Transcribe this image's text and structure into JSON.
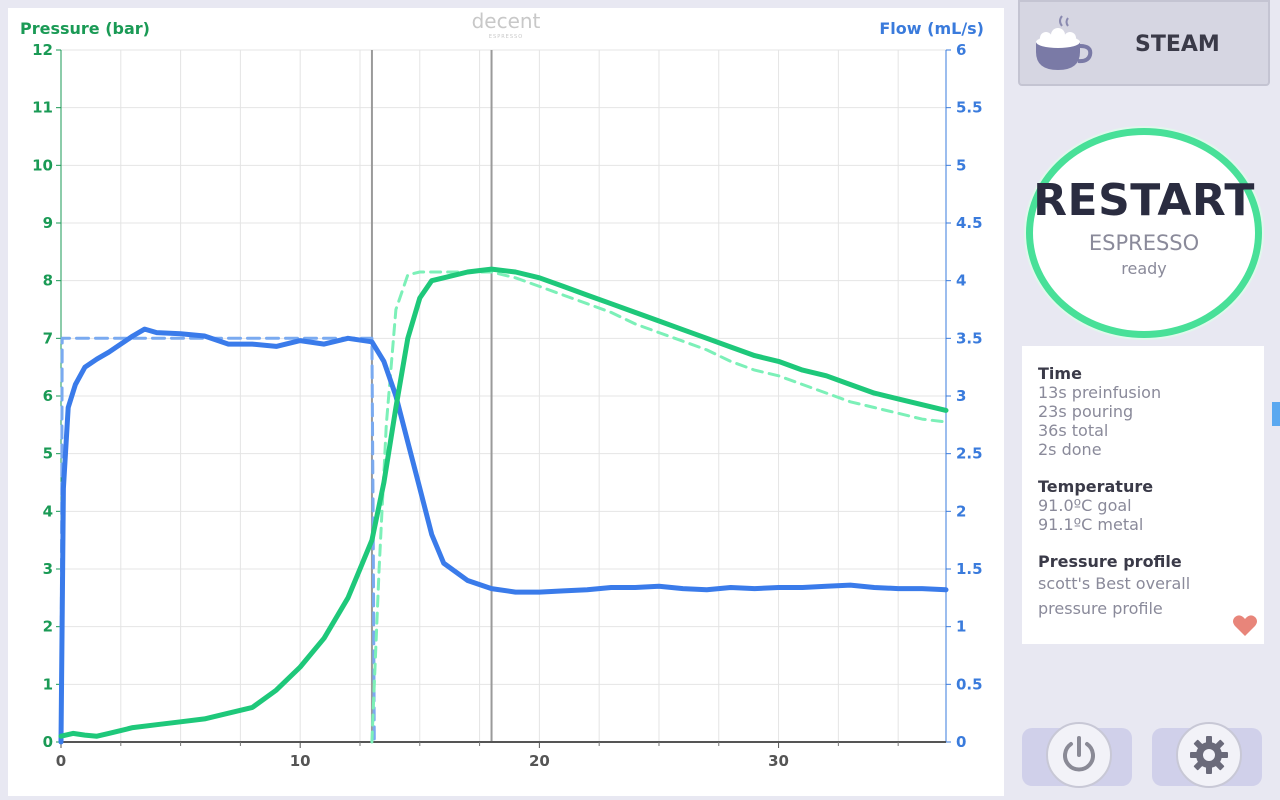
{
  "chart": {
    "brand_logo": "decent",
    "brand_sub": "ESPRESSO",
    "left_axis_title": "Pressure (bar)",
    "right_axis_title": "Flow (mL/s)",
    "colors": {
      "pressure": "#1ec87a",
      "pressure_goal": "#7cf0b8",
      "flow": "#3a7bea",
      "flow_goal": "#7aaaf0",
      "grid": "#e4e4e4",
      "marker": "#9a9a9a"
    }
  },
  "chart_data": {
    "type": "line",
    "xlabel": "",
    "ylabel": "Pressure (bar)",
    "y2label": "Flow (mL/s)",
    "xlim": [
      0,
      37
    ],
    "ylim": [
      0,
      12
    ],
    "y2lim": [
      0,
      6
    ],
    "x_ticks": [
      "0",
      "10",
      "20",
      "30"
    ],
    "x_tick_values": [
      0,
      10,
      20,
      30
    ],
    "y_ticks": [
      "0",
      "1",
      "2",
      "3",
      "4",
      "5",
      "6",
      "7",
      "8",
      "9",
      "10",
      "11",
      "12"
    ],
    "y2_ticks": [
      "0",
      "0.5",
      "1",
      "1.5",
      "2",
      "2.5",
      "3",
      "3.5",
      "4",
      "4.5",
      "5",
      "5.5",
      "6"
    ],
    "grid": true,
    "phase_markers": [
      13,
      18
    ],
    "series": [
      {
        "role": "pressure",
        "axis": "left",
        "style": "solid",
        "x": [
          0,
          0.5,
          1,
          1.5,
          2,
          3,
          4,
          5,
          6,
          7,
          8,
          9,
          10,
          11,
          12,
          12.5,
          13,
          13.5,
          14,
          14.5,
          15,
          15.5,
          16,
          17,
          18,
          19,
          20,
          21,
          22,
          23,
          24,
          25,
          26,
          27,
          28,
          29,
          30,
          31,
          32,
          33,
          34,
          35,
          36,
          37
        ],
        "y": [
          0.1,
          0.15,
          0.12,
          0.1,
          0.15,
          0.25,
          0.3,
          0.35,
          0.4,
          0.5,
          0.6,
          0.9,
          1.3,
          1.8,
          2.5,
          3.0,
          3.5,
          4.5,
          5.8,
          7.0,
          7.7,
          8.0,
          8.05,
          8.15,
          8.2,
          8.15,
          8.05,
          7.9,
          7.75,
          7.6,
          7.45,
          7.3,
          7.15,
          7.0,
          6.85,
          6.7,
          6.6,
          6.45,
          6.35,
          6.2,
          6.05,
          5.95,
          5.85,
          5.75
        ]
      },
      {
        "role": "pressure goal",
        "axis": "left",
        "style": "dashed",
        "x": [
          13,
          13.3,
          13.6,
          14,
          14.5,
          15,
          15.5,
          16,
          17,
          18,
          19,
          20,
          21,
          22,
          23,
          24,
          25,
          26,
          27,
          28,
          29,
          30,
          31,
          32,
          33,
          34,
          35,
          36,
          37
        ],
        "y": [
          0,
          3.0,
          5.5,
          7.5,
          8.1,
          8.15,
          8.15,
          8.15,
          8.15,
          8.15,
          8.05,
          7.9,
          7.75,
          7.6,
          7.45,
          7.25,
          7.1,
          6.95,
          6.8,
          6.6,
          6.45,
          6.35,
          6.2,
          6.05,
          5.9,
          5.8,
          5.7,
          5.6,
          5.55
        ]
      },
      {
        "role": "flow",
        "axis": "right",
        "style": "solid",
        "x": [
          0,
          0.1,
          0.3,
          0.6,
          1,
          1.5,
          2,
          2.5,
          3,
          3.5,
          4,
          5,
          6,
          7,
          8,
          9,
          10,
          11,
          12,
          13,
          13.5,
          14,
          14.5,
          15,
          15.5,
          16,
          17,
          18,
          19,
          20,
          21,
          22,
          23,
          24,
          25,
          26,
          27,
          28,
          29,
          30,
          31,
          32,
          33,
          34,
          35,
          36,
          37
        ],
        "y": [
          0,
          2.2,
          2.9,
          3.1,
          3.25,
          3.32,
          3.38,
          3.45,
          3.52,
          3.58,
          3.55,
          3.54,
          3.52,
          3.45,
          3.45,
          3.43,
          3.48,
          3.45,
          3.5,
          3.47,
          3.3,
          3.0,
          2.6,
          2.2,
          1.8,
          1.55,
          1.4,
          1.33,
          1.3,
          1.3,
          1.31,
          1.32,
          1.34,
          1.34,
          1.35,
          1.33,
          1.32,
          1.34,
          1.33,
          1.34,
          1.34,
          1.35,
          1.36,
          1.34,
          1.33,
          1.33,
          1.32
        ]
      },
      {
        "role": "flow goal",
        "axis": "right",
        "style": "dashed",
        "x": [
          0,
          0.05,
          0.1,
          13,
          13.05,
          13.1
        ],
        "y": [
          0,
          3.5,
          3.5,
          3.5,
          2.0,
          0
        ]
      }
    ]
  },
  "steam": {
    "label": "STEAM",
    "icon": "steam-cup-icon"
  },
  "restart": {
    "title": "RESTART",
    "subtitle": "ESPRESSO",
    "status": "ready"
  },
  "info": {
    "time_head": "Time",
    "time_preinfusion": "13s preinfusion",
    "time_pouring": "23s pouring",
    "time_total": "36s total",
    "time_done": "2s done",
    "temp_head": "Temperature",
    "temp_goal": "91.0ºC goal",
    "temp_metal": "91.1ºC metal",
    "profile_head": "Pressure profile",
    "profile_name_1": "scott's Best overall",
    "profile_name_2": "pressure profile",
    "favorite_icon": "heart-icon",
    "favorite_color": "#e8857a"
  },
  "controls": {
    "power_icon": "power-icon",
    "settings_icon": "gear-icon"
  }
}
